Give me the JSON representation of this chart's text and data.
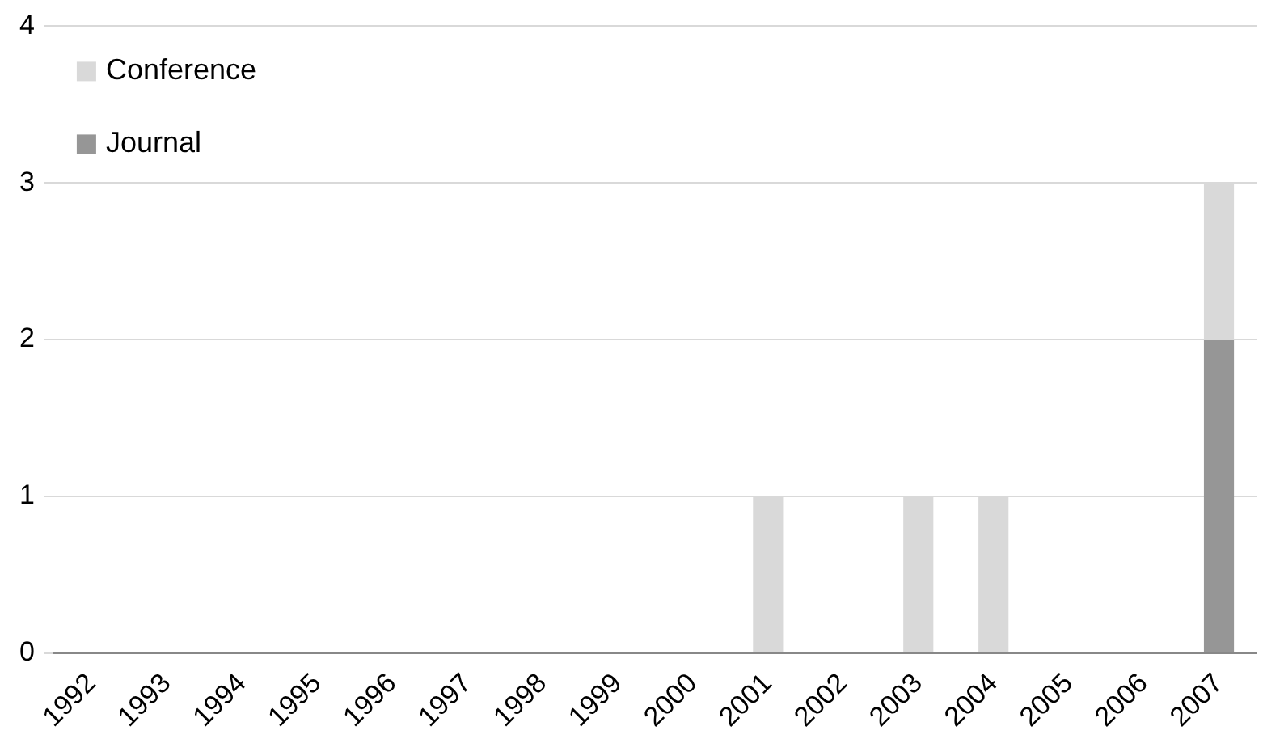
{
  "chart_data": {
    "type": "bar",
    "stacked": true,
    "categories": [
      "1992",
      "1993",
      "1994",
      "1995",
      "1996",
      "1997",
      "1998",
      "1999",
      "2000",
      "2001",
      "2002",
      "2003",
      "2004",
      "2005",
      "2006",
      "2007"
    ],
    "series": [
      {
        "name": "Journal",
        "color": "#969696",
        "values": [
          0,
          0,
          0,
          0,
          0,
          0,
          0,
          0,
          0,
          0,
          0,
          0,
          0,
          0,
          0,
          2
        ]
      },
      {
        "name": "Conference",
        "color": "#d9d9d9",
        "values": [
          0,
          0,
          0,
          0,
          0,
          0,
          0,
          0,
          0,
          1,
          0,
          1,
          1,
          0,
          0,
          1
        ]
      }
    ],
    "ylim": [
      0,
      4
    ],
    "yticks": [
      0,
      1,
      2,
      3,
      4
    ],
    "grid": "y",
    "legend": "top left"
  }
}
